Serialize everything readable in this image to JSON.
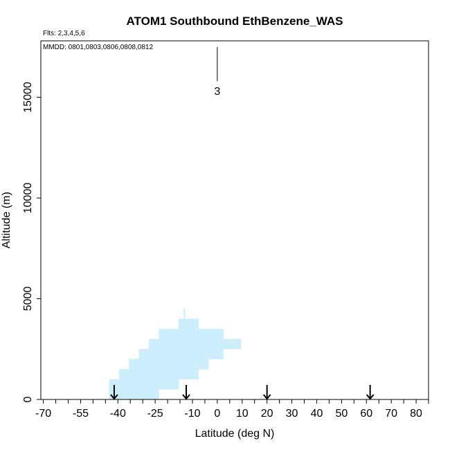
{
  "chart_data": {
    "type": "area",
    "title": "ATOM1 Southbound EthBenzene_WAS",
    "flights_note": "Flts: 2,3,4,5,6",
    "dates_note": "MMDD: 0801,0803,0806,0808,0812",
    "xlabel": "Latitude (deg N)",
    "ylabel": "Altitude (m)",
    "xlim": [
      -71,
      85
    ],
    "ylim": [
      0,
      17800
    ],
    "x_ticks": [
      -70,
      -55,
      -40,
      -25,
      -10,
      0,
      10,
      20,
      30,
      40,
      50,
      60,
      70,
      80
    ],
    "x_tick_labels": [
      "-70",
      "-55",
      "-40",
      "-25",
      "-10",
      "0",
      "10",
      "20",
      "30",
      "40",
      "50",
      "60",
      "70",
      "80"
    ],
    "x_minor_ticks": [
      -70,
      -65,
      -60,
      -55,
      -50,
      -45,
      -40,
      -35,
      -30,
      -25,
      -20,
      -15,
      -10,
      -5,
      0,
      5,
      10,
      15,
      20,
      25,
      30,
      35,
      40,
      45,
      50,
      55,
      60,
      65,
      70,
      75,
      80,
      85
    ],
    "y_ticks": [
      0,
      5000,
      10000,
      15000
    ],
    "y_tick_labels": [
      "0",
      "5000",
      "10000",
      "15000"
    ],
    "fill_color": "#cdeffd",
    "coverage_cells": [
      {
        "lat": [
          -43.5,
          -39.5
        ],
        "alt": [
          0,
          1000
        ]
      },
      {
        "lat": [
          -39.5,
          -35.5
        ],
        "alt": [
          0,
          1500
        ]
      },
      {
        "lat": [
          -35.5,
          -31.5
        ],
        "alt": [
          0,
          2000
        ]
      },
      {
        "lat": [
          -31.5,
          -27.5
        ],
        "alt": [
          0,
          2500
        ]
      },
      {
        "lat": [
          -27.5,
          -23.5
        ],
        "alt": [
          0,
          3000
        ]
      },
      {
        "lat": [
          -23.5,
          -19.5
        ],
        "alt": [
          500,
          3500
        ]
      },
      {
        "lat": [
          -19.5,
          -15.5
        ],
        "alt": [
          500,
          3500
        ]
      },
      {
        "lat": [
          -15.5,
          -11.5
        ],
        "alt": [
          1000,
          4000
        ]
      },
      {
        "lat": [
          -11.5,
          -7.5
        ],
        "alt": [
          1000,
          4000
        ]
      },
      {
        "lat": [
          -7.5,
          -3.5
        ],
        "alt": [
          1500,
          3500
        ]
      },
      {
        "lat": [
          -3.5,
          0.5
        ],
        "alt": [
          2000,
          3500
        ]
      },
      {
        "lat": [
          0.5,
          2.5
        ],
        "alt": [
          2000,
          3500
        ]
      },
      {
        "lat": [
          2.5,
          9.5
        ],
        "alt": [
          2500,
          3000
        ]
      },
      {
        "lat": [
          -13.5,
          -13.0
        ],
        "alt": [
          4000,
          4500
        ]
      }
    ],
    "profile_marker": {
      "lat": 0,
      "alt_top": 17500,
      "alt_bottom": 15800,
      "label": "3"
    },
    "arrow_latitudes": [
      -41.5,
      -12.5,
      20,
      61.5
    ]
  }
}
